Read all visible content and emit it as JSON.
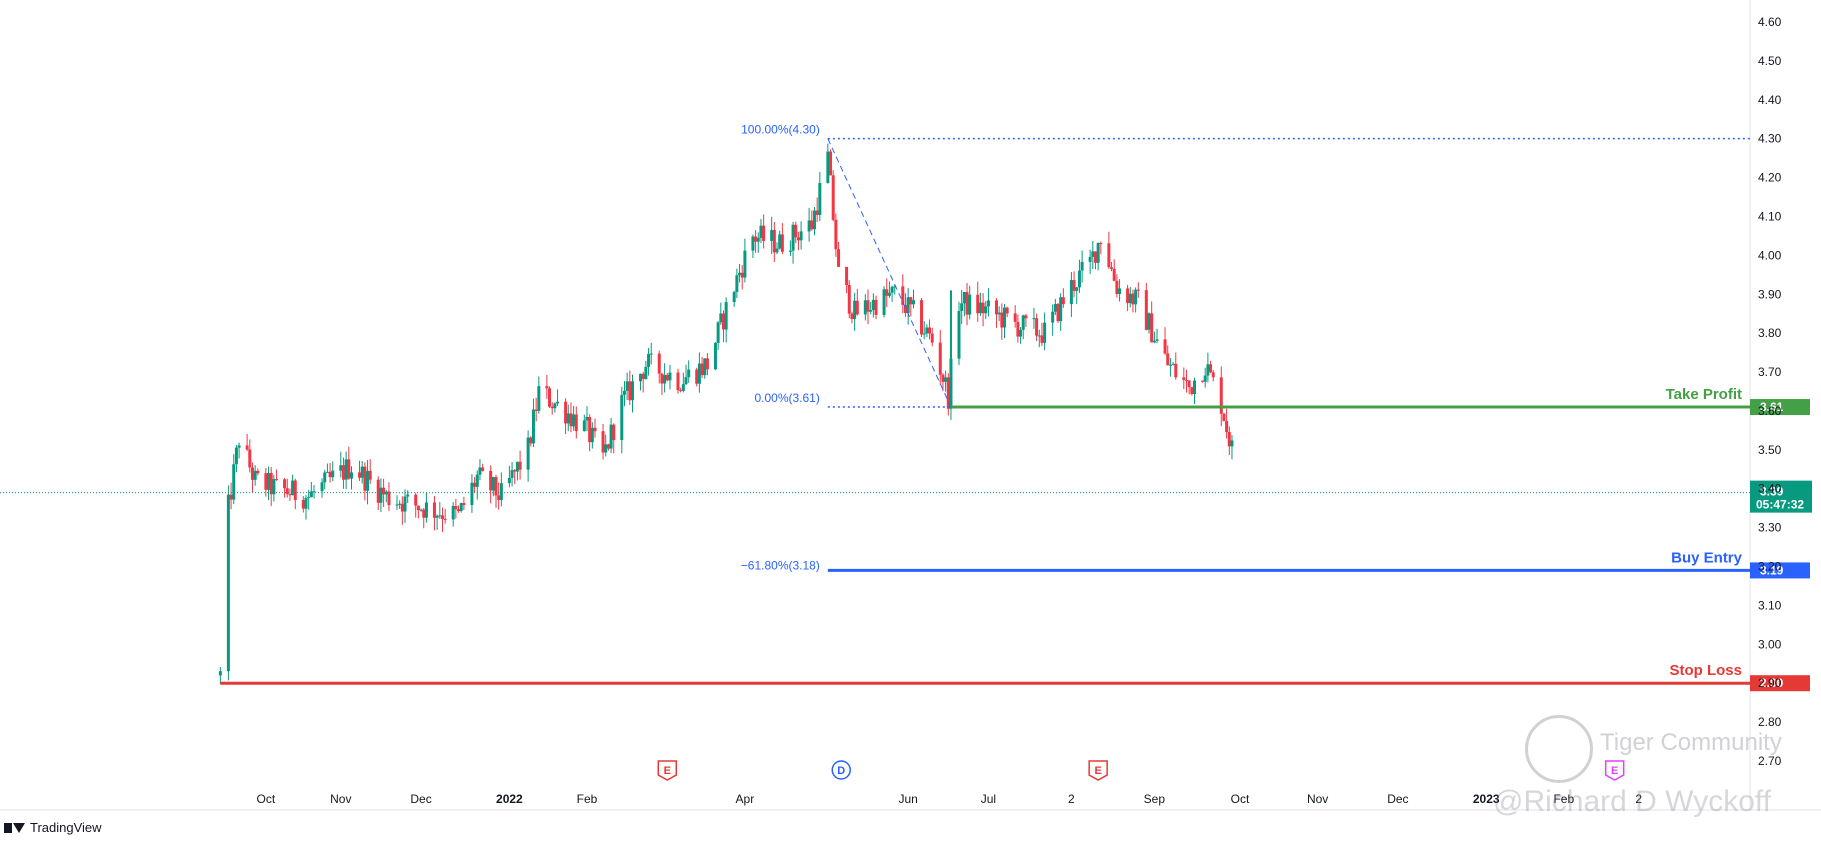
{
  "chart_data": {
    "type": "candlestick",
    "y_ticks": [
      "4.60",
      "4.50",
      "4.40",
      "4.30",
      "4.20",
      "4.10",
      "4.00",
      "3.90",
      "3.80",
      "3.70",
      "3.60",
      "3.50",
      "3.40",
      "3.30",
      "3.20",
      "3.10",
      "3.00",
      "2.90",
      "2.80",
      "2.70"
    ],
    "ylim": [
      2.66,
      4.64
    ],
    "x_ticks": [
      "Oct",
      "Nov",
      "Dec",
      "2022",
      "Feb",
      "Apr",
      "Jun",
      "Jul",
      "2",
      "Sep",
      "Oct",
      "Nov",
      "Dec",
      "2023",
      "Feb",
      "2"
    ],
    "current_price": 3.39,
    "countdown": "05:47:32",
    "price_series": [
      {
        "date": "2021-09-17",
        "close": 2.92
      },
      {
        "date": "2021-09-20",
        "close": 3.35
      },
      {
        "date": "2021-09-24",
        "close": 3.53
      },
      {
        "date": "2021-09-30",
        "close": 3.42
      },
      {
        "date": "2021-10-08",
        "close": 3.4
      },
      {
        "date": "2021-10-20",
        "close": 3.38
      },
      {
        "date": "2021-11-05",
        "close": 3.46
      },
      {
        "date": "2021-11-18",
        "close": 3.38
      },
      {
        "date": "2021-12-03",
        "close": 3.35
      },
      {
        "date": "2021-12-15",
        "close": 3.33
      },
      {
        "date": "2021-12-22",
        "close": 3.43
      },
      {
        "date": "2021-12-31",
        "close": 3.38
      },
      {
        "date": "2022-01-10",
        "close": 3.5
      },
      {
        "date": "2022-01-14",
        "close": 3.65
      },
      {
        "date": "2022-01-24",
        "close": 3.6
      },
      {
        "date": "2022-02-01",
        "close": 3.55
      },
      {
        "date": "2022-02-07",
        "close": 3.48
      },
      {
        "date": "2022-02-14",
        "close": 3.62
      },
      {
        "date": "2022-02-23",
        "close": 3.72
      },
      {
        "date": "2022-03-08",
        "close": 3.68
      },
      {
        "date": "2022-03-18",
        "close": 3.72
      },
      {
        "date": "2022-03-28",
        "close": 3.92
      },
      {
        "date": "2022-04-04",
        "close": 4.05
      },
      {
        "date": "2022-04-14",
        "close": 4.03
      },
      {
        "date": "2022-04-26",
        "close": 4.08
      },
      {
        "date": "2022-05-02",
        "close": 4.25
      },
      {
        "date": "2022-05-06",
        "close": 3.95
      },
      {
        "date": "2022-05-12",
        "close": 3.85
      },
      {
        "date": "2022-05-20",
        "close": 3.88
      },
      {
        "date": "2022-05-27",
        "close": 3.9
      },
      {
        "date": "2022-06-03",
        "close": 3.85
      },
      {
        "date": "2022-06-10",
        "close": 3.78
      },
      {
        "date": "2022-06-16",
        "close": 3.64
      },
      {
        "date": "2022-06-20",
        "close": 3.88
      },
      {
        "date": "2022-06-30",
        "close": 3.86
      },
      {
        "date": "2022-07-12",
        "close": 3.82
      },
      {
        "date": "2022-07-22",
        "close": 3.8
      },
      {
        "date": "2022-08-01",
        "close": 3.92
      },
      {
        "date": "2022-08-08",
        "close": 3.98
      },
      {
        "date": "2022-08-12",
        "close": 4.05
      },
      {
        "date": "2022-08-18",
        "close": 3.92
      },
      {
        "date": "2022-08-26",
        "close": 3.88
      },
      {
        "date": "2022-09-06",
        "close": 3.72
      },
      {
        "date": "2022-09-14",
        "close": 3.66
      },
      {
        "date": "2022-09-20",
        "close": 3.72
      },
      {
        "date": "2022-09-26",
        "close": 3.62
      },
      {
        "date": "2022-09-30",
        "close": 3.5
      },
      {
        "date": "2022-10-03",
        "close": 3.39
      }
    ],
    "fibonacci": [
      {
        "label": "100.00%(4.30)",
        "price": 4.3
      },
      {
        "label": "0.00%(3.61)",
        "price": 3.61
      },
      {
        "label": "−61.80%(3.18)",
        "price": 3.18
      }
    ],
    "horizontal_lines": [
      {
        "name": "Take Profit",
        "price": 3.61,
        "tag": "3.61",
        "color": "#43a047"
      },
      {
        "name": "Buy Entry",
        "price": 3.19,
        "tag": "3.19",
        "color": "#2962ff"
      },
      {
        "name": "Stop Loss",
        "price": 2.9,
        "tag": "2.90",
        "color": "#e53935"
      }
    ],
    "events": [
      {
        "letter": "E",
        "date": "2022-03-03",
        "color": "#e53935"
      },
      {
        "letter": "D",
        "date": "2022-05-07",
        "color": "#2962ff"
      },
      {
        "letter": "E",
        "date": "2022-08-11",
        "color": "#e53935"
      },
      {
        "letter": "E",
        "date": "2023-02-20",
        "color": "#e040fb"
      }
    ]
  },
  "footer": {
    "brand": "TradingView"
  },
  "watermark": {
    "title": "Tiger Community",
    "author": "@Richard D Wyckoff"
  }
}
